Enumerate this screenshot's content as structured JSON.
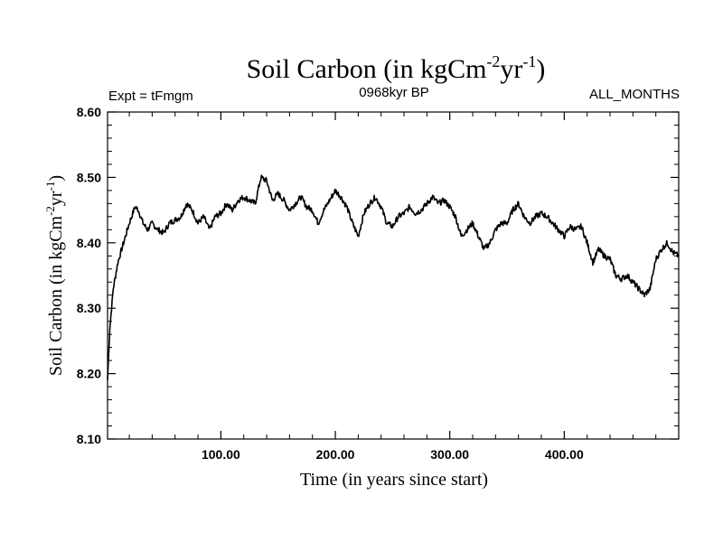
{
  "chart_data": {
    "type": "line",
    "title_main": "Soil Carbon (in kgCm",
    "title_sup1": "-2",
    "title_mid": "yr",
    "title_sup2": "-1",
    "title_end": ")",
    "subtitle_left": "Expt = tFmgm",
    "subtitle_center": "0968kyr BP",
    "subtitle_right": "ALL_MONTHS",
    "xlabel": "Time (in years since start)",
    "ylabel_main": "Soil Carbon (in kgCm",
    "ylabel_sup1": "-2",
    "ylabel_mid": "yr",
    "ylabel_sup2": "-1",
    "ylabel_end": ")",
    "xlim": [
      1,
      500
    ],
    "ylim": [
      8.1,
      8.6
    ],
    "xticks": [
      100,
      200,
      300,
      400
    ],
    "xtick_labels": [
      "100.00",
      "200.00",
      "300.00",
      "400.00"
    ],
    "yticks": [
      8.1,
      8.2,
      8.3,
      8.4,
      8.5,
      8.6
    ],
    "ytick_labels": [
      "8.10",
      "8.20",
      "8.30",
      "8.40",
      "8.50",
      "8.60"
    ],
    "line_color": "#000000",
    "series": [
      {
        "name": "Soil Carbon",
        "x": [
          1,
          3,
          6,
          10,
          15,
          20,
          25,
          28,
          32,
          36,
          40,
          45,
          50,
          55,
          60,
          65,
          70,
          75,
          80,
          85,
          90,
          95,
          100,
          105,
          110,
          115,
          120,
          125,
          130,
          135,
          140,
          145,
          150,
          155,
          160,
          165,
          170,
          175,
          180,
          185,
          190,
          195,
          200,
          205,
          210,
          215,
          220,
          225,
          230,
          235,
          240,
          245,
          250,
          255,
          260,
          265,
          270,
          275,
          280,
          285,
          290,
          295,
          300,
          305,
          310,
          315,
          320,
          325,
          330,
          335,
          340,
          345,
          350,
          355,
          360,
          365,
          370,
          375,
          380,
          385,
          390,
          395,
          400,
          405,
          410,
          415,
          420,
          425,
          430,
          435,
          440,
          445,
          450,
          455,
          460,
          465,
          470,
          475,
          480,
          485,
          490,
          495,
          500
        ],
        "values": [
          8.19,
          8.27,
          8.33,
          8.37,
          8.4,
          8.43,
          8.455,
          8.45,
          8.43,
          8.42,
          8.43,
          8.42,
          8.415,
          8.43,
          8.435,
          8.44,
          8.46,
          8.45,
          8.43,
          8.44,
          8.42,
          8.44,
          8.445,
          8.46,
          8.45,
          8.465,
          8.47,
          8.465,
          8.46,
          8.5,
          8.495,
          8.465,
          8.475,
          8.465,
          8.45,
          8.46,
          8.47,
          8.455,
          8.45,
          8.43,
          8.45,
          8.465,
          8.48,
          8.47,
          8.455,
          8.43,
          8.41,
          8.445,
          8.46,
          8.47,
          8.455,
          8.43,
          8.425,
          8.44,
          8.445,
          8.455,
          8.445,
          8.45,
          8.46,
          8.47,
          8.46,
          8.465,
          8.455,
          8.44,
          8.41,
          8.42,
          8.43,
          8.41,
          8.39,
          8.4,
          8.42,
          8.43,
          8.43,
          8.45,
          8.46,
          8.44,
          8.43,
          8.44,
          8.445,
          8.44,
          8.43,
          8.42,
          8.41,
          8.425,
          8.42,
          8.425,
          8.4,
          8.37,
          8.39,
          8.38,
          8.375,
          8.35,
          8.345,
          8.35,
          8.34,
          8.33,
          8.32,
          8.33,
          8.375,
          8.39,
          8.4,
          8.385,
          8.38
        ]
      }
    ]
  }
}
